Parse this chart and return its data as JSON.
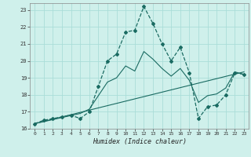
{
  "xlabel": "Humidex (Indice chaleur)",
  "bg_color": "#cff0eb",
  "grid_color": "#aaddd8",
  "line_color": "#1a6b62",
  "xlim": [
    -0.5,
    23.5
  ],
  "ylim": [
    16,
    23.4
  ],
  "yticks": [
    16,
    17,
    18,
    19,
    20,
    21,
    22,
    23
  ],
  "xticks": [
    0,
    1,
    2,
    3,
    4,
    5,
    6,
    7,
    8,
    9,
    10,
    11,
    12,
    13,
    14,
    15,
    16,
    17,
    18,
    19,
    20,
    21,
    22,
    23
  ],
  "series1_x": [
    0,
    1,
    2,
    3,
    4,
    5,
    6,
    7,
    8,
    9,
    10,
    11,
    12,
    13,
    14,
    15,
    16,
    17,
    18,
    19,
    20,
    21,
    22,
    23
  ],
  "series1_y": [
    16.3,
    16.5,
    16.6,
    16.7,
    16.8,
    16.6,
    17.0,
    18.5,
    20.0,
    20.4,
    21.7,
    21.8,
    23.2,
    22.2,
    21.0,
    20.0,
    20.8,
    19.3,
    16.6,
    17.3,
    17.4,
    18.0,
    19.3,
    19.2
  ],
  "series2_x": [
    0,
    23
  ],
  "series2_y": [
    16.3,
    19.35
  ],
  "series3_x": [
    0,
    5,
    6,
    7,
    8,
    9,
    10,
    11,
    12,
    13,
    14,
    15,
    16,
    17,
    18,
    19,
    20,
    21,
    22,
    23
  ],
  "series3_y": [
    16.3,
    16.9,
    17.15,
    17.95,
    18.75,
    19.0,
    19.7,
    19.4,
    20.55,
    20.1,
    19.55,
    19.1,
    19.55,
    18.85,
    17.55,
    17.95,
    18.05,
    18.4,
    19.35,
    19.2
  ]
}
